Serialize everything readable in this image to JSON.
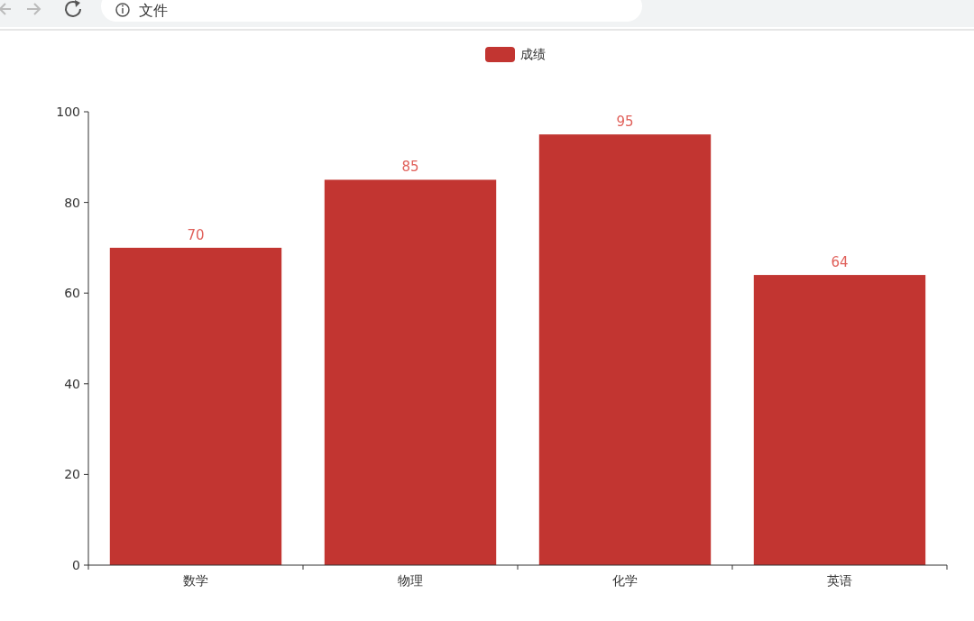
{
  "chart_data": {
    "type": "bar",
    "annotations": [
      "文件"
    ],
    "categories": [
      "数学",
      "物理",
      "化学",
      "英语"
    ],
    "series": [
      {
        "name": "成绩",
        "color": "#c23531",
        "values": [
          70,
          85,
          95,
          64
        ]
      }
    ],
    "ylim": [
      0,
      100
    ],
    "yticks": [
      0,
      20,
      40,
      60,
      80,
      100
    ],
    "grid": false,
    "legend": "top",
    "data_labels": true
  }
}
